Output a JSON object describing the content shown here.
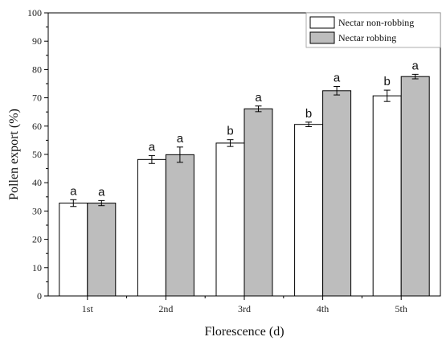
{
  "chart_data": {
    "type": "bar",
    "xlabel": "Florescence (d)",
    "ylabel": "Pollen export (%)",
    "ylim": [
      0,
      100
    ],
    "yticks": [
      0,
      10,
      20,
      30,
      40,
      50,
      60,
      70,
      80,
      90,
      100
    ],
    "categories": [
      "1st",
      "2nd",
      "3rd",
      "4th",
      "5th"
    ],
    "legend_position": "top-right",
    "grid": false,
    "series": [
      {
        "name": "Nectar non-robbing",
        "color": "#ffffff",
        "values": [
          32.8,
          48.2,
          54.0,
          60.6,
          70.7
        ],
        "errors": [
          1.2,
          1.4,
          1.2,
          0.8,
          2.0
        ],
        "letters": [
          "a",
          "a",
          "b",
          "b",
          "b"
        ]
      },
      {
        "name": "Nectar robbing",
        "color": "#bdbdbd",
        "values": [
          32.8,
          49.9,
          66.1,
          72.5,
          77.5
        ],
        "errors": [
          0.9,
          2.7,
          1.0,
          1.5,
          0.8
        ],
        "letters": [
          "a",
          "a",
          "a",
          "a",
          "a"
        ]
      }
    ]
  }
}
